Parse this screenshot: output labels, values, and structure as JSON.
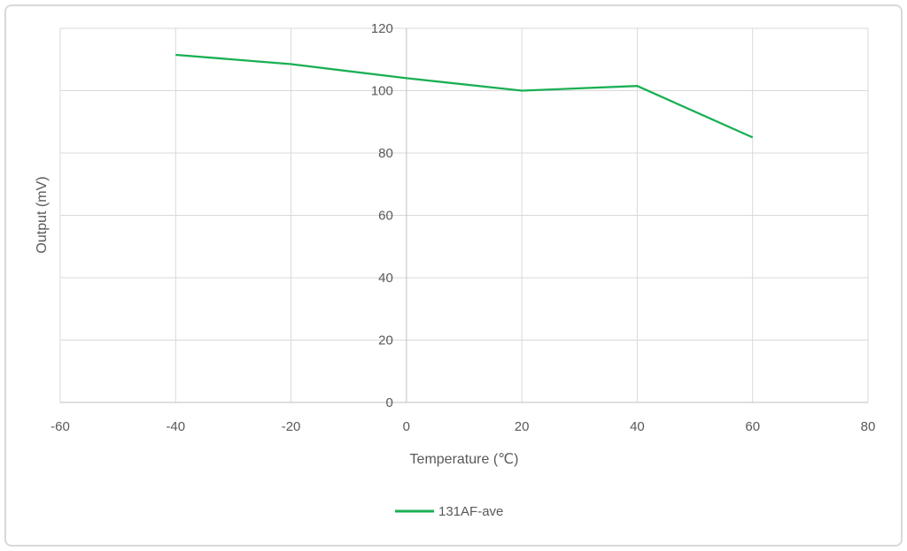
{
  "frame": {
    "border_color": "#d9d9d9",
    "background": "#ffffff"
  },
  "chart_data": {
    "type": "line",
    "x": [
      -40,
      -20,
      0,
      20,
      40,
      60
    ],
    "series": [
      {
        "name": "131AF-ave",
        "color": "#1aaf54",
        "values": [
          111.5,
          108.5,
          104,
          100,
          101.5,
          85
        ]
      }
    ],
    "title": "",
    "xlabel": "Temperature (℃)",
    "ylabel": "Output (mV)",
    "xlim": [
      -60,
      80
    ],
    "ylim": [
      0,
      120
    ],
    "x_ticks": [
      -60,
      -40,
      -20,
      0,
      20,
      40,
      60,
      80
    ],
    "y_ticks": [
      0,
      20,
      40,
      60,
      80,
      100,
      120
    ],
    "grid": true,
    "legend_position": "bottom",
    "colors": {
      "gridline": "#d9d9d9",
      "axis_line": "#bfbfbf",
      "tick_text": "#595959"
    }
  }
}
